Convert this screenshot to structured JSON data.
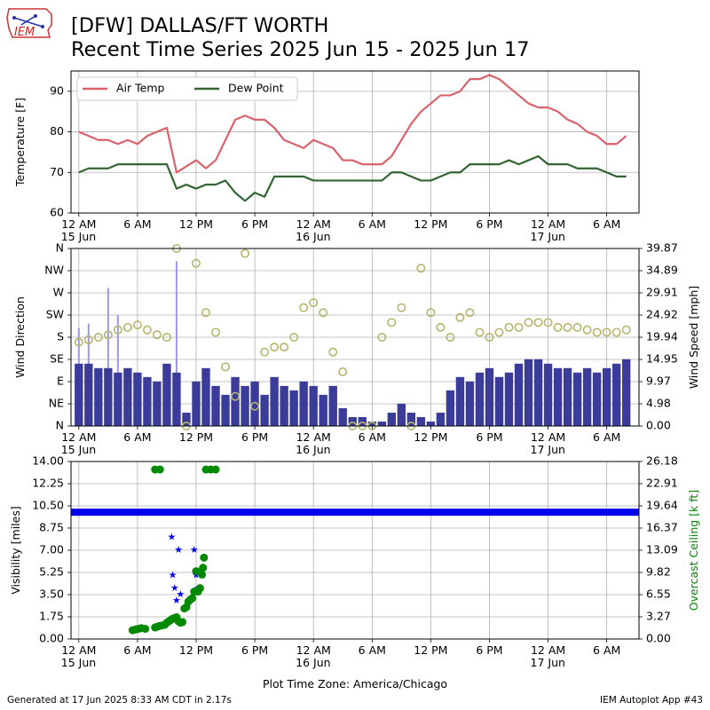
{
  "header": {
    "title_line1": "[DFW] DALLAS/FT WORTH",
    "title_line2": "Recent Time Series 2025 Jun 15 - 2025 Jun 17",
    "logo_text": "IEM"
  },
  "footer": {
    "generated": "Generated at 17 Jun 2025 8:33 AM CDT in 2.17s",
    "app": "IEM Autoplot App #43",
    "timezone": "Plot Time Zone: America/Chicago"
  },
  "colors": {
    "air_temp": "#d9626b",
    "dew_point": "#336633",
    "wind_speed": "#3b3b9a",
    "wind_gust": "#9a9aee",
    "wind_dir": "#b5b56d",
    "visibility": "#0000ee",
    "ceiling": "#008800",
    "grid": "#b0b0b0"
  },
  "chart_data": [
    {
      "type": "line",
      "ylabel": "Temperature [F]",
      "ylim": [
        60,
        95
      ],
      "yticks": [
        "60",
        "70",
        "80",
        "90"
      ],
      "x_ticks": [
        "12 AM",
        "6 AM",
        "12 PM",
        "6 PM",
        "12 AM",
        "6 AM",
        "12 PM",
        "6 PM",
        "12 AM",
        "6 AM"
      ],
      "x_date_labels": [
        "15 Jun",
        "16 Jun",
        "17 Jun"
      ],
      "x_hours": [
        0,
        1,
        2,
        3,
        4,
        5,
        6,
        7,
        8,
        9,
        10,
        11,
        12,
        13,
        14,
        15,
        16,
        17,
        18,
        19,
        20,
        21,
        22,
        23,
        24,
        25,
        26,
        27,
        28,
        29,
        30,
        31,
        32,
        33,
        34,
        35,
        36,
        37,
        38,
        39,
        40,
        41,
        42,
        43,
        44,
        45,
        46,
        47,
        48,
        49,
        50,
        51,
        52,
        53,
        54,
        55,
        56
      ],
      "legend": "top-left",
      "grid": true,
      "series": [
        {
          "name": "Air Temp",
          "values": [
            80,
            79,
            78,
            78,
            77,
            78,
            77,
            79,
            80,
            81,
            70,
            71.5,
            73,
            71,
            73,
            78,
            83,
            84,
            83,
            83,
            81,
            78,
            77,
            76,
            78,
            77,
            76,
            73,
            73,
            72,
            72,
            72,
            74,
            78,
            82,
            85,
            87,
            89,
            89,
            90,
            93,
            93,
            94,
            93,
            91,
            89,
            87,
            86,
            86,
            85,
            83,
            82,
            80,
            79,
            77,
            77,
            79
          ]
        },
        {
          "name": "Dew Point",
          "values": [
            70,
            71,
            71,
            71,
            72,
            72,
            72,
            72,
            72,
            72,
            66,
            67,
            66,
            67,
            67,
            68,
            65,
            63,
            65,
            64,
            69,
            69,
            69,
            69,
            68,
            68,
            68,
            68,
            68,
            68,
            68,
            68,
            70,
            70,
            69,
            68,
            68,
            69,
            70,
            70,
            72,
            72,
            72,
            72,
            73,
            72,
            73,
            74,
            72,
            72,
            72,
            71,
            71,
            71,
            70,
            69,
            69
          ]
        }
      ]
    },
    {
      "type": "bar",
      "ylabel": "Wind Direction",
      "y2label": "Wind Speed [mph]",
      "ylim": [
        0,
        360
      ],
      "y2lim": [
        0,
        39.87
      ],
      "yticks": [
        "N",
        "NE",
        "E",
        "SE",
        "S",
        "SW",
        "W",
        "NW",
        "N"
      ],
      "y2ticks": [
        "0.00",
        "4.98",
        "9.97",
        "14.95",
        "19.94",
        "24.92",
        "29.91",
        "34.89",
        "39.87"
      ],
      "x_ticks": [
        "12 AM",
        "6 AM",
        "12 PM",
        "6 PM",
        "12 AM",
        "6 AM",
        "12 PM",
        "6 PM",
        "12 AM",
        "6 AM"
      ],
      "x_date_labels": [
        "15 Jun",
        "16 Jun",
        "17 Jun"
      ],
      "x_hours": [
        0,
        1,
        2,
        3,
        4,
        5,
        6,
        7,
        8,
        9,
        10,
        11,
        12,
        13,
        14,
        15,
        16,
        17,
        18,
        19,
        20,
        21,
        22,
        23,
        24,
        25,
        26,
        27,
        28,
        29,
        30,
        31,
        32,
        33,
        34,
        35,
        36,
        37,
        38,
        39,
        40,
        41,
        42,
        43,
        44,
        45,
        46,
        47,
        48,
        49,
        50,
        51,
        52,
        53,
        54,
        55,
        56
      ],
      "grid": true,
      "series": [
        {
          "name": "Wind Speed",
          "values": [
            14,
            14,
            13,
            13,
            12,
            13,
            12,
            11,
            10,
            14,
            12,
            3,
            10,
            13,
            9,
            7,
            11,
            9,
            10,
            7,
            11,
            9,
            8,
            10,
            9,
            7,
            9,
            4,
            2,
            2,
            1,
            1,
            3,
            5,
            3,
            2,
            1,
            3,
            8,
            11,
            10,
            12,
            13,
            11,
            12,
            14,
            15,
            15,
            14,
            13,
            13,
            12,
            13,
            12,
            13,
            14,
            15
          ]
        },
        {
          "name": "Wind Gust",
          "values": [
            22,
            23,
            0,
            31,
            25,
            0,
            0,
            0,
            0,
            0,
            37,
            0,
            0,
            0,
            0,
            0,
            0,
            0,
            0,
            0,
            0,
            0,
            0,
            0,
            0,
            0,
            0,
            0,
            0,
            0,
            0,
            0,
            0,
            0,
            0,
            0,
            0,
            0,
            0,
            0,
            0,
            0,
            0,
            0,
            0,
            0,
            0,
            0,
            0,
            0,
            0,
            0,
            0,
            0,
            0,
            0,
            0
          ]
        },
        {
          "name": "Wind Direction",
          "values": [
            170,
            175,
            180,
            185,
            195,
            200,
            205,
            195,
            185,
            180,
            360,
            0,
            330,
            230,
            190,
            120,
            60,
            350,
            40,
            150,
            160,
            160,
            180,
            240,
            250,
            230,
            150,
            110,
            0,
            0,
            0,
            180,
            210,
            240,
            0,
            320,
            230,
            200,
            180,
            220,
            230,
            190,
            180,
            190,
            200,
            200,
            210,
            210,
            210,
            200,
            200,
            200,
            195,
            190,
            190,
            190,
            195
          ]
        }
      ]
    },
    {
      "type": "scatter",
      "ylabel": "Visibility [miles]",
      "y2label": "Overcast Ceiling [k ft]",
      "ylim": [
        0,
        14
      ],
      "y2lim": [
        0,
        26.18
      ],
      "yticks": [
        "0.00",
        "1.75",
        "3.50",
        "5.25",
        "7.00",
        "8.75",
        "10.50",
        "12.25",
        "14.00"
      ],
      "y2ticks": [
        "0.00",
        "3.27",
        "6.55",
        "9.82",
        "13.09",
        "16.37",
        "19.64",
        "22.91",
        "26.18"
      ],
      "x_ticks": [
        "12 AM",
        "6 AM",
        "12 PM",
        "6 PM",
        "12 AM",
        "6 AM",
        "12 PM",
        "6 PM",
        "12 AM",
        "6 AM"
      ],
      "x_date_labels": [
        "15 Jun",
        "16 Jun",
        "17 Jun"
      ],
      "xlabel": "Plot Time Zone: America/Chicago",
      "grid": true,
      "visibility_constant": 10,
      "visibility_points": {
        "x": [
          9.5,
          9.6,
          9.8,
          10.0,
          10.2,
          10.4,
          11.8,
          12.0,
          12.2
        ],
        "y": [
          8,
          5,
          4,
          3,
          7,
          3.5,
          7,
          5,
          4
        ]
      },
      "ceiling_points": {
        "x": [
          5.5,
          5.8,
          6.1,
          6.4,
          6.8,
          7.8,
          8.0,
          8.2,
          8.5,
          8.8,
          9.0,
          9.2,
          9.4,
          9.6,
          9.8,
          10.0,
          10.2,
          10.4,
          10.6,
          10.8,
          11.0,
          11.2,
          11.4,
          11.6,
          11.8,
          12.0,
          12.2,
          12.4,
          12.6,
          12.7,
          12.8,
          13.0,
          7.8,
          8.3,
          13.5,
          14.0
        ],
        "y": [
          1.3,
          1.4,
          1.5,
          1.6,
          1.5,
          1.7,
          1.8,
          1.9,
          2.0,
          2.1,
          2.4,
          2.6,
          2.8,
          3.0,
          3.1,
          3.2,
          2.6,
          2.4,
          2.5,
          4.5,
          4.7,
          5.5,
          5.8,
          6.0,
          7.0,
          10.0,
          7.0,
          7.5,
          9.5,
          10.5,
          12.0,
          25.0,
          25.0,
          25.0,
          25.0,
          25.0
        ]
      }
    }
  ]
}
